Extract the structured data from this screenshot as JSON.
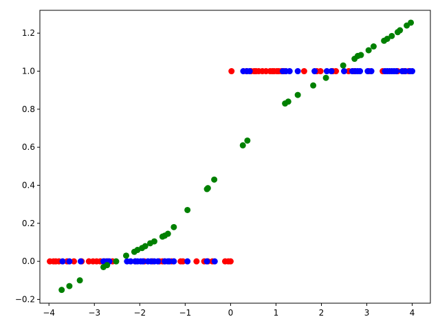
{
  "chart_data": {
    "type": "scatter",
    "title": "",
    "xlabel": "",
    "ylabel": "",
    "xlim": [
      -4.2,
      4.4
    ],
    "ylim": [
      -0.22,
      1.32
    ],
    "xticks": [
      -4,
      -3,
      -2,
      -1,
      0,
      1,
      2,
      3,
      4
    ],
    "xtick_labels": [
      "−4",
      "−3",
      "−2",
      "−1",
      "0",
      "1",
      "2",
      "3",
      "4"
    ],
    "yticks": [
      -0.2,
      0.0,
      0.2,
      0.4,
      0.6,
      0.8,
      1.0,
      1.2
    ],
    "ytick_labels": [
      "−0.2",
      "0.0",
      "0.2",
      "0.4",
      "0.6",
      "0.8",
      "1.0",
      "1.2"
    ],
    "grid": false,
    "series": [
      {
        "color": "#ff0000",
        "points": [
          [
            -3.98,
            0
          ],
          [
            -3.9,
            0
          ],
          [
            -3.85,
            0
          ],
          [
            -3.78,
            0
          ],
          [
            -3.6,
            0
          ],
          [
            -3.45,
            0
          ],
          [
            -3.28,
            0
          ],
          [
            -3.12,
            0
          ],
          [
            -3.03,
            0
          ],
          [
            -2.95,
            0
          ],
          [
            -2.87,
            0
          ],
          [
            -2.78,
            0
          ],
          [
            -2.7,
            0
          ],
          [
            -2.6,
            0
          ],
          [
            -2.1,
            0
          ],
          [
            -1.9,
            0
          ],
          [
            -1.72,
            0
          ],
          [
            -1.57,
            0
          ],
          [
            -1.5,
            0
          ],
          [
            -1.45,
            0
          ],
          [
            -1.3,
            0
          ],
          [
            -1.1,
            0
          ],
          [
            -1.05,
            0
          ],
          [
            -0.75,
            0
          ],
          [
            -0.58,
            0
          ],
          [
            -0.5,
            0
          ],
          [
            -0.4,
            0
          ],
          [
            -0.12,
            0
          ],
          [
            -0.05,
            0
          ],
          [
            0.0,
            0
          ],
          [
            0.02,
            1
          ],
          [
            0.35,
            1
          ],
          [
            0.45,
            1
          ],
          [
            0.52,
            1
          ],
          [
            0.56,
            1
          ],
          [
            0.62,
            1
          ],
          [
            0.7,
            1
          ],
          [
            0.78,
            1
          ],
          [
            0.87,
            1
          ],
          [
            0.92,
            1
          ],
          [
            0.96,
            1
          ],
          [
            1.02,
            1
          ],
          [
            1.06,
            1
          ],
          [
            1.12,
            1
          ],
          [
            1.18,
            1
          ],
          [
            1.62,
            1
          ],
          [
            1.9,
            1
          ],
          [
            1.98,
            1
          ],
          [
            2.25,
            1
          ],
          [
            2.32,
            1
          ],
          [
            2.6,
            1
          ],
          [
            2.72,
            1
          ],
          [
            3.05,
            1
          ],
          [
            3.35,
            1
          ],
          [
            3.68,
            1
          ],
          [
            3.82,
            1
          ],
          [
            3.92,
            1
          ]
        ]
      },
      {
        "color": "#0000ff",
        "points": [
          [
            -3.7,
            0
          ],
          [
            -3.55,
            0
          ],
          [
            -3.3,
            0
          ],
          [
            -2.8,
            0
          ],
          [
            -2.73,
            0
          ],
          [
            -2.67,
            0
          ],
          [
            -2.28,
            0
          ],
          [
            -2.2,
            0
          ],
          [
            -2.1,
            0
          ],
          [
            -2.05,
            0
          ],
          [
            -1.98,
            0
          ],
          [
            -1.93,
            0
          ],
          [
            -1.82,
            0
          ],
          [
            -1.75,
            0
          ],
          [
            -1.68,
            0
          ],
          [
            -1.6,
            0
          ],
          [
            -1.45,
            0
          ],
          [
            -1.38,
            0
          ],
          [
            -1.35,
            0
          ],
          [
            -1.25,
            0
          ],
          [
            -0.95,
            0
          ],
          [
            -0.52,
            0
          ],
          [
            -0.35,
            0
          ],
          [
            0.28,
            1
          ],
          [
            0.36,
            1
          ],
          [
            0.42,
            1
          ],
          [
            1.15,
            1
          ],
          [
            1.22,
            1
          ],
          [
            1.3,
            1
          ],
          [
            1.48,
            1
          ],
          [
            1.85,
            1
          ],
          [
            2.12,
            1
          ],
          [
            2.22,
            1
          ],
          [
            2.5,
            1
          ],
          [
            2.68,
            1
          ],
          [
            2.75,
            1
          ],
          [
            2.8,
            1
          ],
          [
            2.85,
            1
          ],
          [
            3.02,
            1
          ],
          [
            3.1,
            1
          ],
          [
            3.4,
            1
          ],
          [
            3.45,
            1
          ],
          [
            3.5,
            1
          ],
          [
            3.55,
            1
          ],
          [
            3.6,
            1
          ],
          [
            3.65,
            1
          ],
          [
            3.78,
            1
          ],
          [
            3.85,
            1
          ],
          [
            3.95,
            1
          ],
          [
            4.0,
            1
          ]
        ]
      },
      {
        "color": "#008000",
        "points": [
          [
            -3.72,
            -0.15
          ],
          [
            -3.55,
            -0.13
          ],
          [
            -3.32,
            -0.1
          ],
          [
            -2.8,
            -0.03
          ],
          [
            -2.72,
            -0.02
          ],
          [
            -2.52,
            0.0
          ],
          [
            -2.3,
            0.03
          ],
          [
            -2.12,
            0.05
          ],
          [
            -2.05,
            0.06
          ],
          [
            -1.95,
            0.07
          ],
          [
            -1.88,
            0.08
          ],
          [
            -1.77,
            0.095
          ],
          [
            -1.68,
            0.105
          ],
          [
            -1.5,
            0.13
          ],
          [
            -1.45,
            0.135
          ],
          [
            -1.38,
            0.145
          ],
          [
            -1.25,
            0.18
          ],
          [
            -0.95,
            0.27
          ],
          [
            -0.52,
            0.38
          ],
          [
            -0.5,
            0.385
          ],
          [
            -0.36,
            0.43
          ],
          [
            0.27,
            0.61
          ],
          [
            0.37,
            0.635
          ],
          [
            1.2,
            0.83
          ],
          [
            1.27,
            0.84
          ],
          [
            1.48,
            0.875
          ],
          [
            1.82,
            0.925
          ],
          [
            2.1,
            0.965
          ],
          [
            2.48,
            1.03
          ],
          [
            2.73,
            1.065
          ],
          [
            2.8,
            1.08
          ],
          [
            2.87,
            1.085
          ],
          [
            3.04,
            1.11
          ],
          [
            3.15,
            1.13
          ],
          [
            3.38,
            1.16
          ],
          [
            3.45,
            1.17
          ],
          [
            3.55,
            1.185
          ],
          [
            3.68,
            1.205
          ],
          [
            3.73,
            1.215
          ],
          [
            3.88,
            1.24
          ],
          [
            3.97,
            1.255
          ]
        ]
      }
    ]
  }
}
